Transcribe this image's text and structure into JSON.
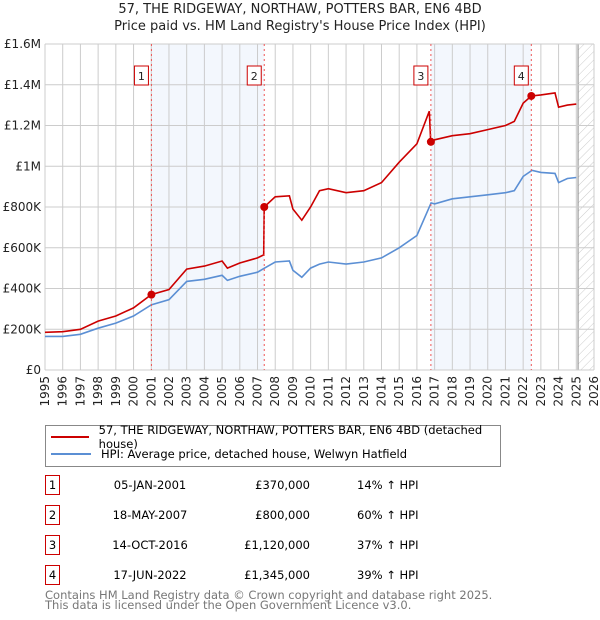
{
  "header": {
    "title": "57, THE RIDGEWAY, NORTHAW, POTTERS BAR, EN6 4BD",
    "subtitle": "Price paid vs. HM Land Registry's House Price Index (HPI)"
  },
  "chart_data": {
    "type": "line",
    "title": "57, THE RIDGEWAY, NORTHAW, POTTERS BAR, EN6 4BD",
    "subtitle": "Price paid vs. HM Land Registry's House Price Index (HPI)",
    "xlim": [
      1995,
      2026
    ],
    "ylim": [
      0,
      1600000
    ],
    "x_ticks": [
      "1995",
      "1996",
      "1997",
      "1998",
      "1999",
      "2000",
      "2001",
      "2002",
      "2003",
      "2004",
      "2005",
      "2006",
      "2007",
      "2008",
      "2009",
      "2010",
      "2011",
      "2012",
      "2013",
      "2014",
      "2015",
      "2016",
      "2017",
      "2018",
      "2019",
      "2020",
      "2021",
      "2022",
      "2023",
      "2024",
      "2025",
      "2026"
    ],
    "y_ticks": [
      {
        "v": 0,
        "label": "£0"
      },
      {
        "v": 200000,
        "label": "£200K"
      },
      {
        "v": 400000,
        "label": "£400K"
      },
      {
        "v": 600000,
        "label": "£600K"
      },
      {
        "v": 800000,
        "label": "£800K"
      },
      {
        "v": 1000000,
        "label": "£1M"
      },
      {
        "v": 1200000,
        "label": "£1.2M"
      },
      {
        "v": 1400000,
        "label": "£1.4M"
      },
      {
        "v": 1600000,
        "label": "£1.6M"
      }
    ],
    "grid": true,
    "shaded_ranges": [
      [
        2001.01,
        2007.38
      ],
      [
        2016.79,
        2022.46
      ]
    ],
    "forecast_from": 2025.1,
    "series": [
      {
        "name": "57, THE RIDGEWAY, NORTHAW, POTTERS BAR, EN6 4BD (detached house)",
        "color": "#cc0000",
        "x": [
          1995,
          1996,
          1997,
          1998,
          1999,
          2000,
          2001,
          2002,
          2003,
          2004,
          2005,
          2005.3,
          2006,
          2007,
          2007.35,
          2007.38,
          2008,
          2008.8,
          2009,
          2009.5,
          2010,
          2010.5,
          2011,
          2012,
          2013,
          2014,
          2015,
          2016,
          2016.7,
          2016.78,
          2017,
          2018,
          2019,
          2020,
          2021,
          2021.5,
          2022,
          2022.46,
          2023,
          2023.8,
          2024,
          2024.5,
          2025
        ],
        "y": [
          185000,
          188000,
          200000,
          240000,
          265000,
          305000,
          370000,
          395000,
          495000,
          510000,
          535000,
          500000,
          525000,
          550000,
          565000,
          800000,
          850000,
          855000,
          790000,
          735000,
          800000,
          880000,
          890000,
          870000,
          880000,
          920000,
          1020000,
          1110000,
          1270000,
          1120000,
          1130000,
          1150000,
          1160000,
          1180000,
          1200000,
          1220000,
          1310000,
          1345000,
          1350000,
          1360000,
          1290000,
          1300000,
          1305000
        ]
      },
      {
        "name": "HPI: Average price, detached house, Welwyn Hatfield",
        "color": "#5b8fd4",
        "x": [
          1995,
          1996,
          1997,
          1998,
          1999,
          2000,
          2001,
          2002,
          2003,
          2004,
          2005,
          2005.3,
          2006,
          2007,
          2007.4,
          2008,
          2008.8,
          2009,
          2009.5,
          2010,
          2010.5,
          2011,
          2012,
          2013,
          2014,
          2015,
          2016,
          2016.8,
          2017,
          2018,
          2019,
          2020,
          2021,
          2021.5,
          2022,
          2022.5,
          2023,
          2023.8,
          2024,
          2024.5,
          2025
        ],
        "y": [
          165000,
          165000,
          175000,
          205000,
          230000,
          265000,
          320000,
          345000,
          435000,
          445000,
          465000,
          440000,
          460000,
          480000,
          500000,
          530000,
          535000,
          490000,
          455000,
          500000,
          520000,
          530000,
          520000,
          530000,
          550000,
          600000,
          660000,
          820000,
          815000,
          840000,
          850000,
          860000,
          870000,
          880000,
          950000,
          980000,
          970000,
          965000,
          920000,
          940000,
          945000
        ]
      }
    ],
    "sales": [
      {
        "label": "1",
        "x": 2001.01,
        "y": 370000
      },
      {
        "label": "2",
        "x": 2007.38,
        "y": 800000
      },
      {
        "label": "3",
        "x": 2016.79,
        "y": 1120000
      },
      {
        "label": "4",
        "x": 2022.46,
        "y": 1345000
      }
    ]
  },
  "legend": {
    "items": [
      {
        "label": "57, THE RIDGEWAY, NORTHAW, POTTERS BAR, EN6 4BD (detached house)",
        "color": "#cc0000"
      },
      {
        "label": "HPI: Average price, detached house, Welwyn Hatfield",
        "color": "#5b8fd4"
      }
    ]
  },
  "transactions": [
    {
      "num": "1",
      "date": "05-JAN-2001",
      "price": "£370,000",
      "hpi": "14% ↑ HPI"
    },
    {
      "num": "2",
      "date": "18-MAY-2007",
      "price": "£800,000",
      "hpi": "60% ↑ HPI"
    },
    {
      "num": "3",
      "date": "14-OCT-2016",
      "price": "£1,120,000",
      "hpi": "37% ↑ HPI"
    },
    {
      "num": "4",
      "date": "17-JUN-2022",
      "price": "£1,345,000",
      "hpi": "39% ↑ HPI"
    }
  ],
  "footer": {
    "line1": "Contains HM Land Registry data © Crown copyright and database right 2025.",
    "line2": "This data is licensed under the Open Government Licence v3.0."
  }
}
